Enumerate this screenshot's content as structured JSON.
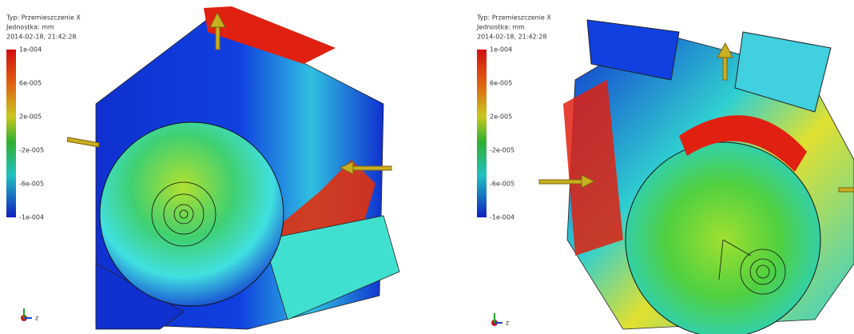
{
  "panels": [
    {
      "type_line": "Typ: Przemieszczenie X",
      "unit_line": "Jednostka: mm",
      "timestamp": "2014-02-18, 21:42:28",
      "legend_labels": [
        "1e-004",
        "6e-005",
        "2e-005",
        "-2e-005",
        "-6e-005",
        "-1e-004"
      ],
      "axis_label": "z"
    },
    {
      "type_line": "Typ: Przemieszczenie X",
      "unit_line": "Jednostka: mm",
      "timestamp": "2014-02-18, 21:42:28",
      "legend_labels": [
        "1e-004",
        "6e-005",
        "2e-005",
        "-2e-005",
        "-6e-005",
        "-1e-004"
      ],
      "axis_label": "z"
    }
  ]
}
